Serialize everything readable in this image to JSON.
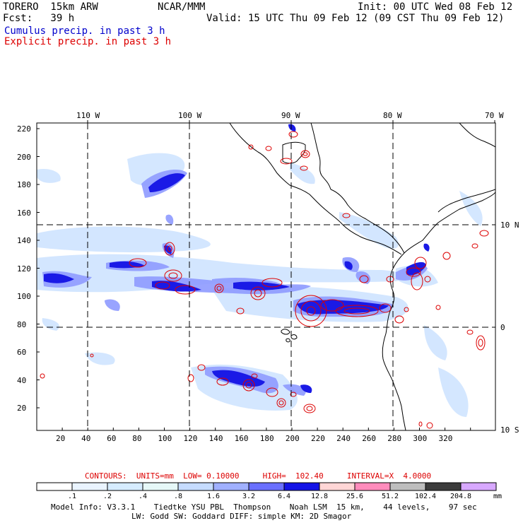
{
  "header": {
    "model": "TORERO  15km ARW",
    "org": "NCAR/MMM",
    "init": "Init: 00 UTC Wed 08 Feb 12",
    "fcst": "Fcst:   39 h",
    "valid": "Valid: 15 UTC Thu 09 Feb 12 (09 CST Thu 09 Feb 12)"
  },
  "legend": {
    "cumulus": "Cumulus precip. in past 3 h",
    "explicit": "Explicit precip. in past 3 h",
    "cumulus_color": "#0000cc",
    "explicit_color": "#dd0000"
  },
  "axes": {
    "top": [
      "110 W",
      "100 W",
      "90 W",
      "80 W",
      "70 W"
    ],
    "right": [
      "10 N",
      "0",
      "10 S"
    ],
    "left": [
      "220",
      "200",
      "180",
      "160",
      "140",
      "120",
      "100",
      "80",
      "60",
      "40",
      "20"
    ],
    "bottom": [
      "20",
      "40",
      "60",
      "80",
      "100",
      "120",
      "140",
      "160",
      "180",
      "200",
      "220",
      "240",
      "260",
      "280",
      "300",
      "320"
    ]
  },
  "contours": {
    "text": "CONTOURS:  UNITS=mm  LOW= 0.10000     HIGH=  102.40     INTERVAL=X  4.0000",
    "color": "#dd0000"
  },
  "colorbar": {
    "labels": [
      ".1",
      ".2",
      ".4",
      ".8",
      "1.6",
      "3.2",
      "6.4",
      "12.8",
      "25.6",
      "51.2",
      "102.4",
      "204.8"
    ],
    "unit": "mm",
    "colors": [
      "#ffffff",
      "#eaf4ff",
      "#d6ecff",
      "#e6f8f8",
      "#c6dcff",
      "#a0b0ff",
      "#6a70ff",
      "#1414e6",
      "#ffd6d6",
      "#ff8cbc",
      "#bebebe",
      "#3c3c3c",
      "#d8a8ff"
    ]
  },
  "footer": {
    "line1": "Model Info: V3.3.1    Tiedtke YSU PBL  Thompson    Noah LSM  15 km,    44 levels,    97 sec",
    "line2": "LW: Godd SW: Goddard DIFF: simple KM: 2D Smagor"
  }
}
